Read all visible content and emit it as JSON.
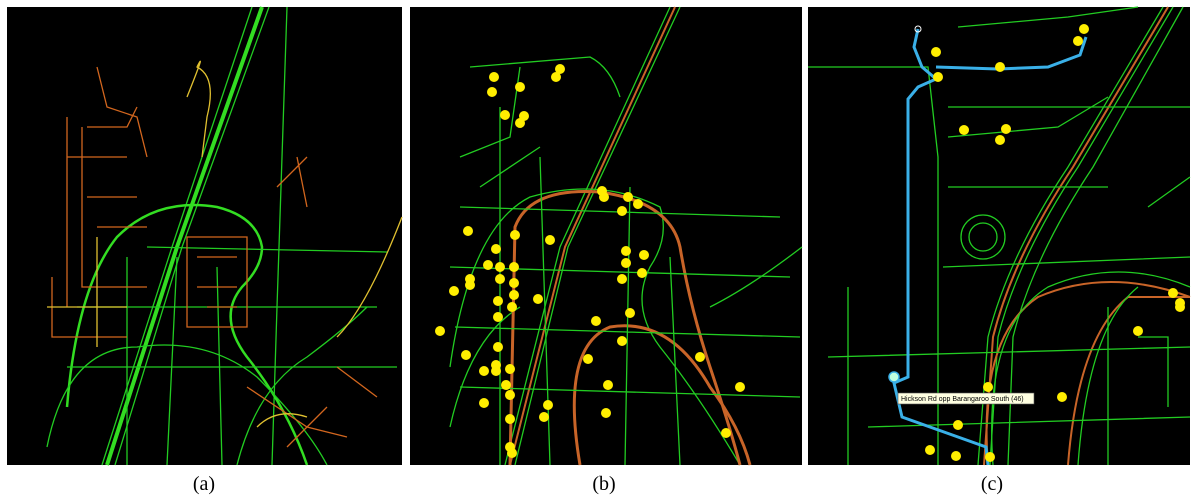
{
  "panels": [
    {
      "caption": "(a)"
    },
    {
      "caption": "(b)"
    },
    {
      "caption": "(c)",
      "tooltip": "Hickson Rd opp Barangaroo South (46)"
    }
  ]
}
